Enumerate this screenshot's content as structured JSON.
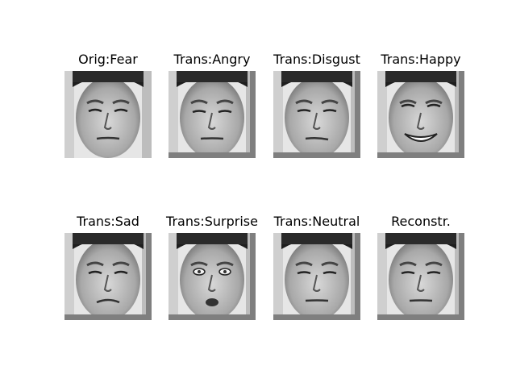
{
  "panels": [
    {
      "title": "Orig:Fear",
      "expression": "fear",
      "bottom_band": false
    },
    {
      "title": "Trans:Angry",
      "expression": "angry",
      "bottom_band": true
    },
    {
      "title": "Trans:Disgust",
      "expression": "disgust",
      "bottom_band": true
    },
    {
      "title": "Trans:Happy",
      "expression": "happy",
      "bottom_band": true
    },
    {
      "title": "Trans:Sad",
      "expression": "sad",
      "bottom_band": true
    },
    {
      "title": "Trans:Surprise",
      "expression": "surprise",
      "bottom_band": true
    },
    {
      "title": "Trans:Neutral",
      "expression": "neutral",
      "bottom_band": true
    },
    {
      "title": "Reconstr.",
      "expression": "neutral",
      "bottom_band": true
    }
  ]
}
